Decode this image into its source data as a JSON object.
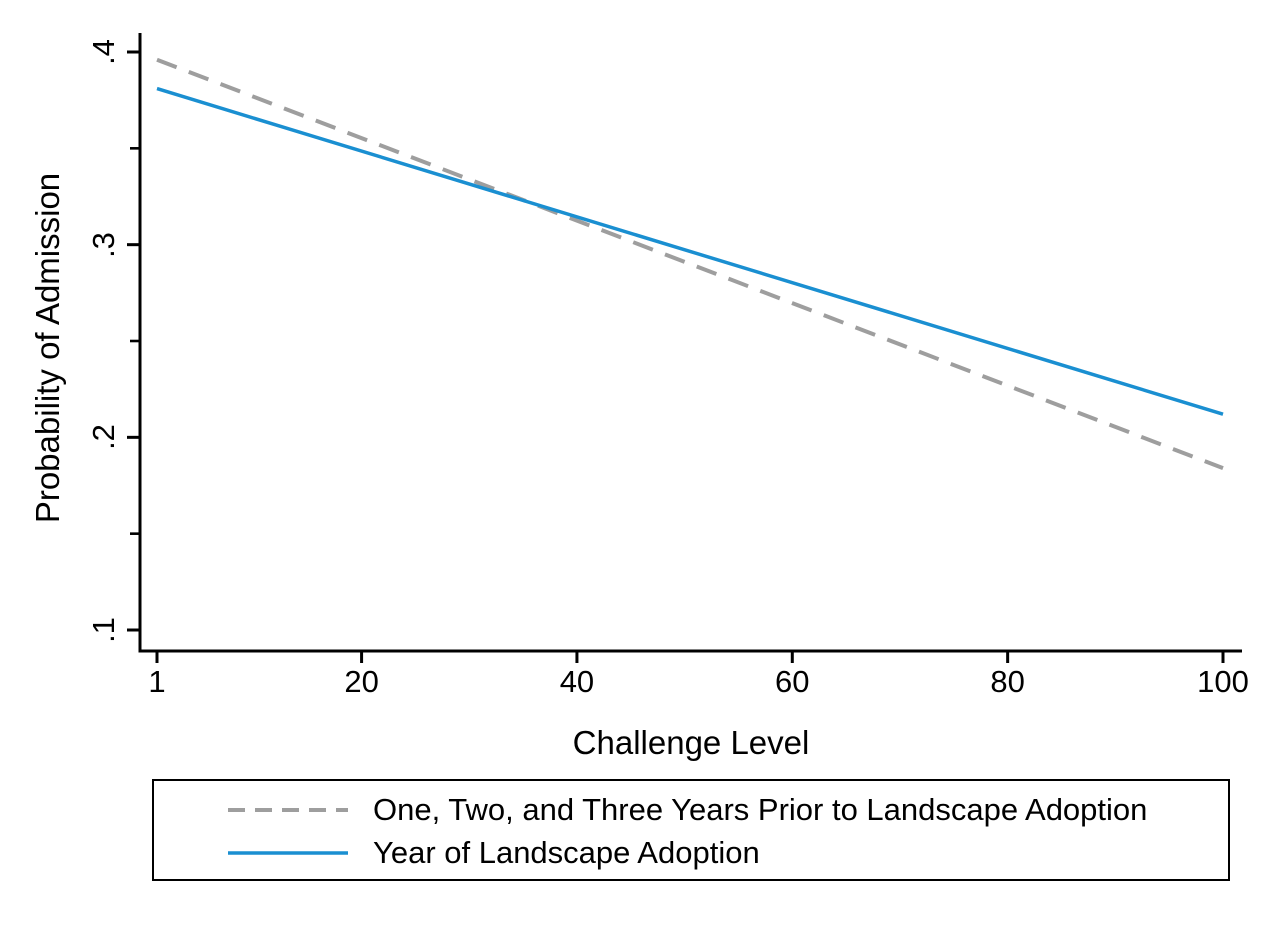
{
  "chart_data": {
    "type": "line",
    "title": "",
    "xlabel": "Challenge Level",
    "ylabel": "Probability of Admission",
    "xlim": [
      1,
      100
    ],
    "ylim_display": [
      0.089,
      0.41
    ],
    "x_ticks": [
      1,
      20,
      40,
      60,
      80,
      100
    ],
    "x_tick_labels": [
      "1",
      "20",
      "40",
      "60",
      "80",
      "100"
    ],
    "y_ticks": [
      0.4,
      0.3,
      0.2,
      0.1
    ],
    "y_tick_labels": [
      ".4",
      ".3",
      ".2",
      ".1"
    ],
    "y_minor_ticks": [
      0.35,
      0.25,
      0.15
    ],
    "grid": false,
    "legend_position": "bottom",
    "axis_color": "#000000",
    "background_color": "#ffffff",
    "series": [
      {
        "name": "One, Two, and Three Years Prior to Landscape Adoption",
        "style": "dashed",
        "color": "#9e9e9e",
        "line_width": 4,
        "x": [
          1,
          100
        ],
        "values": [
          0.396,
          0.184
        ]
      },
      {
        "name": "Year of Landscape Adoption",
        "style": "solid",
        "color": "#1a8fd1",
        "line_width": 3.5,
        "x": [
          1,
          100
        ],
        "values": [
          0.381,
          0.212
        ]
      }
    ]
  }
}
